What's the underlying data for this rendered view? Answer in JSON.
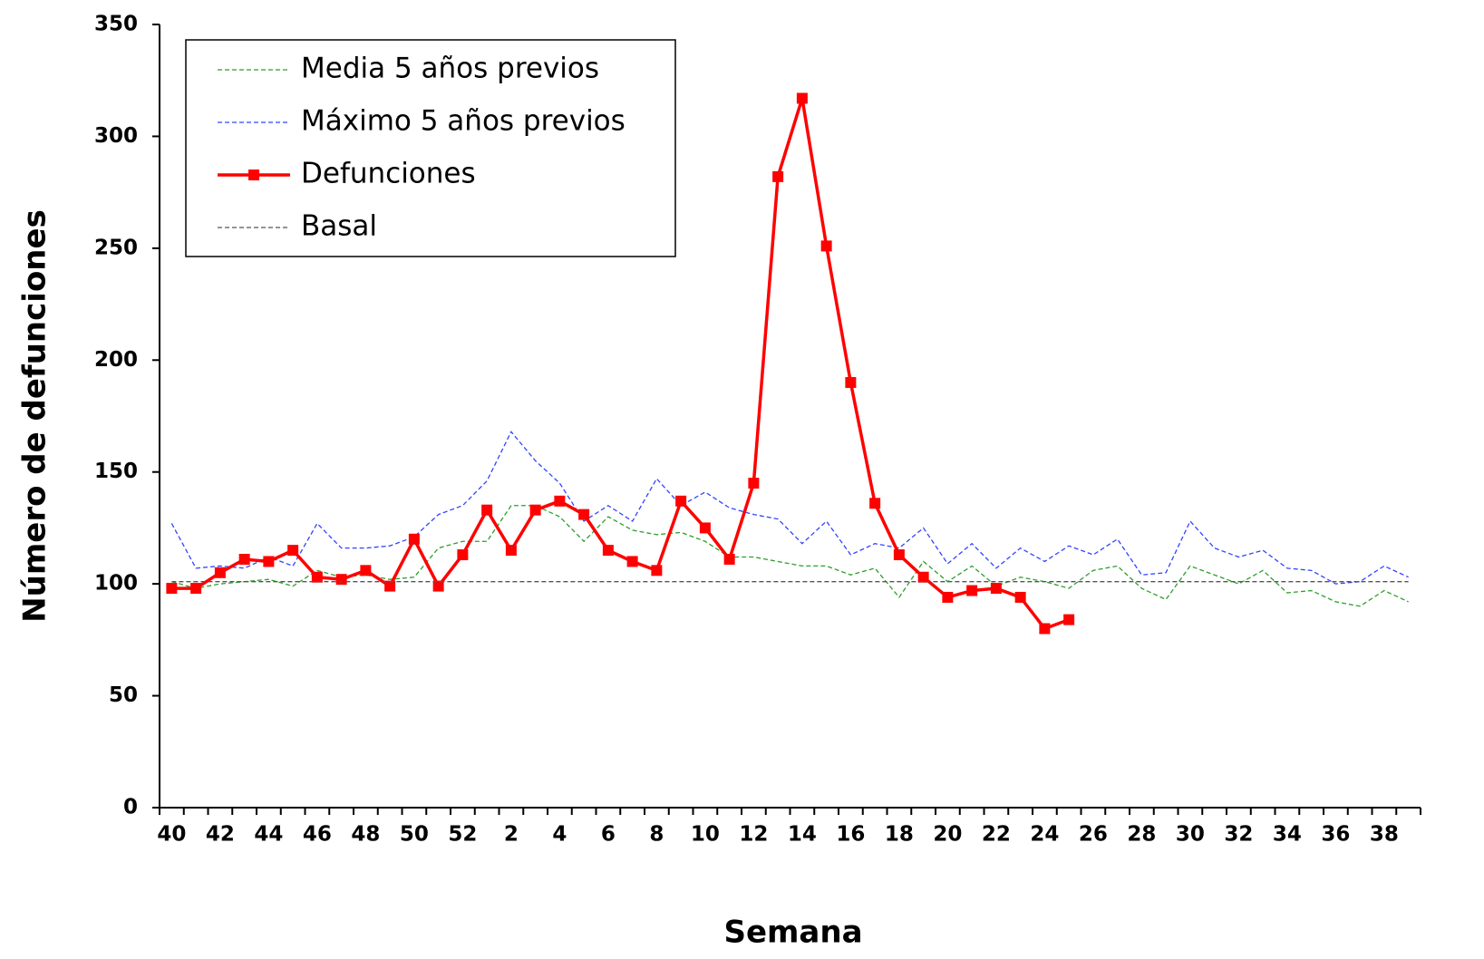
{
  "chart_data": {
    "type": "line",
    "xlabel": "Semana",
    "ylabel": "Número de defunciones",
    "categories": [
      "40",
      null,
      "42",
      null,
      "44",
      null,
      "46",
      null,
      "48",
      null,
      "50",
      null,
      "52",
      null,
      "2",
      null,
      "4",
      null,
      "6",
      null,
      "8",
      null,
      "10",
      null,
      "12",
      null,
      "14",
      null,
      "16",
      null,
      "18",
      null,
      "20",
      null,
      "22",
      null,
      "24",
      null,
      "26",
      null,
      "28",
      null,
      "30",
      null,
      "32",
      null,
      "34",
      null,
      "36",
      null,
      "38",
      null
    ],
    "ylim": [
      0,
      350
    ],
    "yticks": [
      0,
      50,
      100,
      150,
      200,
      250,
      300,
      350
    ],
    "legend": "upper left",
    "series": [
      {
        "name": "Media 5 años previos",
        "color": "#2e9e2e",
        "dashed": true,
        "marker": false,
        "values": [
          101,
          98,
          100,
          101,
          102,
          99,
          106,
          103,
          104,
          102,
          103,
          116,
          119,
          119,
          135,
          135,
          130,
          119,
          130,
          124,
          122,
          123,
          119,
          112,
          112,
          110,
          108,
          108,
          104,
          107,
          94,
          110,
          101,
          108,
          99,
          103,
          101,
          98,
          106,
          108,
          98,
          93,
          108,
          104,
          100,
          106,
          96,
          97,
          92,
          90,
          97,
          92
        ]
      },
      {
        "name": "Máximo 5 años previos",
        "color": "#3344ff",
        "dashed": true,
        "marker": false,
        "values": [
          127,
          107,
          108,
          107,
          112,
          108,
          127,
          116,
          116,
          117,
          121,
          131,
          135,
          146,
          168,
          155,
          145,
          128,
          135,
          128,
          147,
          135,
          141,
          134,
          131,
          129,
          118,
          128,
          113,
          118,
          116,
          125,
          109,
          118,
          107,
          116,
          110,
          117,
          113,
          120,
          104,
          105,
          128,
          116,
          112,
          115,
          107,
          106,
          100,
          101,
          108,
          103
        ]
      },
      {
        "name": "Defunciones",
        "color": "#ff0000",
        "dashed": false,
        "marker": true,
        "values": [
          98,
          98,
          105,
          111,
          110,
          115,
          103,
          102,
          106,
          99,
          120,
          99,
          113,
          133,
          115,
          133,
          137,
          131,
          115,
          110,
          106,
          137,
          125,
          111,
          145,
          282,
          317,
          251,
          190,
          136,
          113,
          103,
          94,
          97,
          98,
          94,
          80,
          84,
          null,
          null,
          null,
          null,
          null,
          null,
          null,
          null,
          null,
          null,
          null,
          null,
          null,
          null
        ]
      },
      {
        "name": "Basal",
        "color": "#555555",
        "dashed": true,
        "marker": false,
        "values": [
          101,
          101,
          101,
          101,
          101,
          101,
          101,
          101,
          101,
          101,
          101,
          101,
          101,
          101,
          101,
          101,
          101,
          101,
          101,
          101,
          101,
          101,
          101,
          101,
          101,
          101,
          101,
          101,
          101,
          101,
          101,
          101,
          101,
          101,
          101,
          101,
          101,
          101,
          101,
          101,
          101,
          101,
          101,
          101,
          101,
          101,
          101,
          101,
          101,
          101,
          101,
          101
        ]
      }
    ]
  }
}
